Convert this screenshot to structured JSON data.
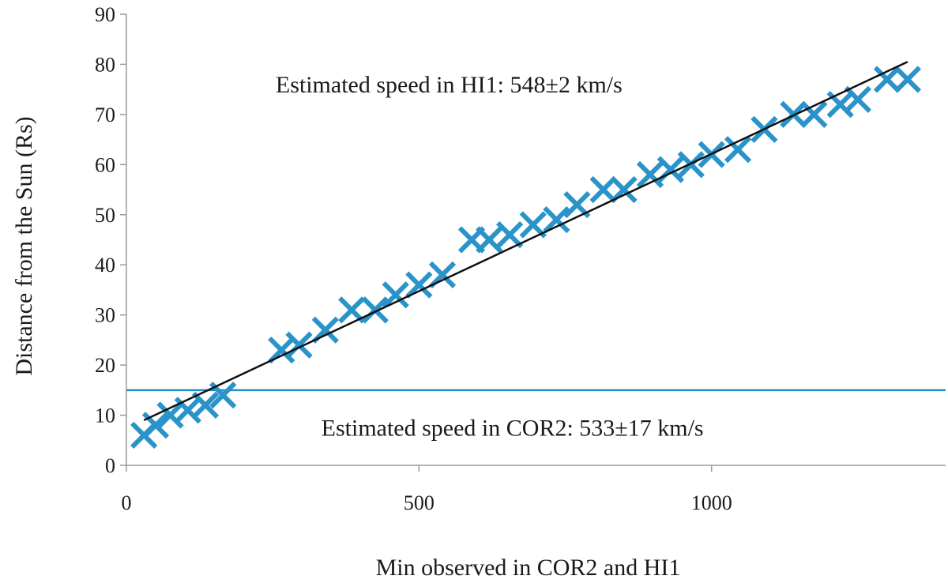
{
  "chart_data": {
    "type": "scatter",
    "xlabel": "Min observed in COR2 and HI1",
    "ylabel": "Distance from the Sun (Rs)",
    "xlim": [
      0,
      1400
    ],
    "ylim": [
      0,
      90
    ],
    "x_ticks": [
      0,
      500,
      1000
    ],
    "y_ticks": [
      0,
      10,
      20,
      30,
      40,
      50,
      60,
      70,
      80,
      90
    ],
    "grid": false,
    "marker_color": "#2a93c9",
    "series": [
      {
        "marker": "x",
        "points": [
          {
            "x": 30,
            "y": 6
          },
          {
            "x": 50,
            "y": 8
          },
          {
            "x": 75,
            "y": 10
          },
          {
            "x": 105,
            "y": 11
          },
          {
            "x": 135,
            "y": 12
          },
          {
            "x": 165,
            "y": 14
          },
          {
            "x": 265,
            "y": 23
          },
          {
            "x": 295,
            "y": 24
          },
          {
            "x": 340,
            "y": 27
          },
          {
            "x": 385,
            "y": 31
          },
          {
            "x": 425,
            "y": 31
          },
          {
            "x": 460,
            "y": 34
          },
          {
            "x": 500,
            "y": 36
          },
          {
            "x": 540,
            "y": 38
          },
          {
            "x": 590,
            "y": 45
          },
          {
            "x": 620,
            "y": 45
          },
          {
            "x": 655,
            "y": 46
          },
          {
            "x": 695,
            "y": 48
          },
          {
            "x": 735,
            "y": 49
          },
          {
            "x": 770,
            "y": 52
          },
          {
            "x": 815,
            "y": 55
          },
          {
            "x": 850,
            "y": 55
          },
          {
            "x": 895,
            "y": 58
          },
          {
            "x": 930,
            "y": 59
          },
          {
            "x": 965,
            "y": 60
          },
          {
            "x": 1000,
            "y": 62
          },
          {
            "x": 1045,
            "y": 63
          },
          {
            "x": 1090,
            "y": 67
          },
          {
            "x": 1140,
            "y": 70
          },
          {
            "x": 1175,
            "y": 70
          },
          {
            "x": 1220,
            "y": 72
          },
          {
            "x": 1250,
            "y": 73
          },
          {
            "x": 1300,
            "y": 77
          },
          {
            "x": 1335,
            "y": 77
          }
        ]
      }
    ],
    "trendline": {
      "color": "#111111",
      "x1": 30,
      "y1": 9,
      "x2": 1335,
      "y2": 80.5
    },
    "threshold": {
      "color": "#1e8fc6",
      "y": 15
    },
    "annotations": {
      "hi1": {
        "text": "Estimated speed in HI1: 548±2 km/s",
        "x": 255,
        "y": 76
      },
      "cor2": {
        "text": "Estimated speed in COR2: 533±17 km/s",
        "x": 333,
        "y": 7.5
      }
    }
  }
}
